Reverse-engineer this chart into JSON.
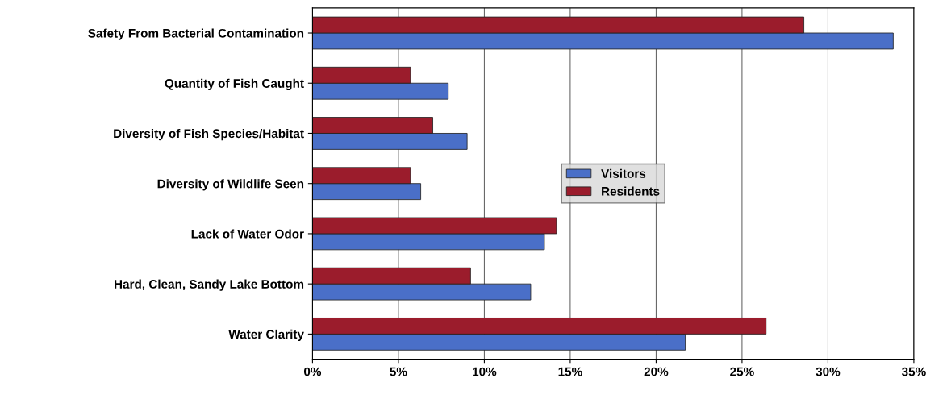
{
  "chart_data": {
    "type": "bar",
    "orientation": "horizontal",
    "categories": [
      "Safety From Bacterial Contamination",
      "Quantity of Fish Caught",
      "Diversity of Fish Species/Habitat",
      "Diversity of Wildlife Seen",
      "Lack of Water Odor",
      "Hard, Clean, Sandy Lake Bottom",
      "Water Clarity"
    ],
    "series": [
      {
        "name": "Visitors",
        "color": "#4a6fc8",
        "values": [
          33.8,
          7.9,
          9.0,
          6.3,
          13.5,
          12.7,
          21.7
        ]
      },
      {
        "name": "Residents",
        "color": "#9b1c2c",
        "values": [
          28.6,
          5.7,
          7.0,
          5.7,
          14.2,
          9.2,
          26.4
        ]
      }
    ],
    "xlim": [
      0,
      35
    ],
    "xticks": [
      {
        "value": 0,
        "label": "0%"
      },
      {
        "value": 5,
        "label": "5%"
      },
      {
        "value": 10,
        "label": "10%"
      },
      {
        "value": 15,
        "label": "15%"
      },
      {
        "value": 20,
        "label": "20%"
      },
      {
        "value": 25,
        "label": "25%"
      },
      {
        "value": 30,
        "label": "30%"
      },
      {
        "value": 35,
        "label": "35%"
      }
    ],
    "grid": "x",
    "legend": "center"
  }
}
